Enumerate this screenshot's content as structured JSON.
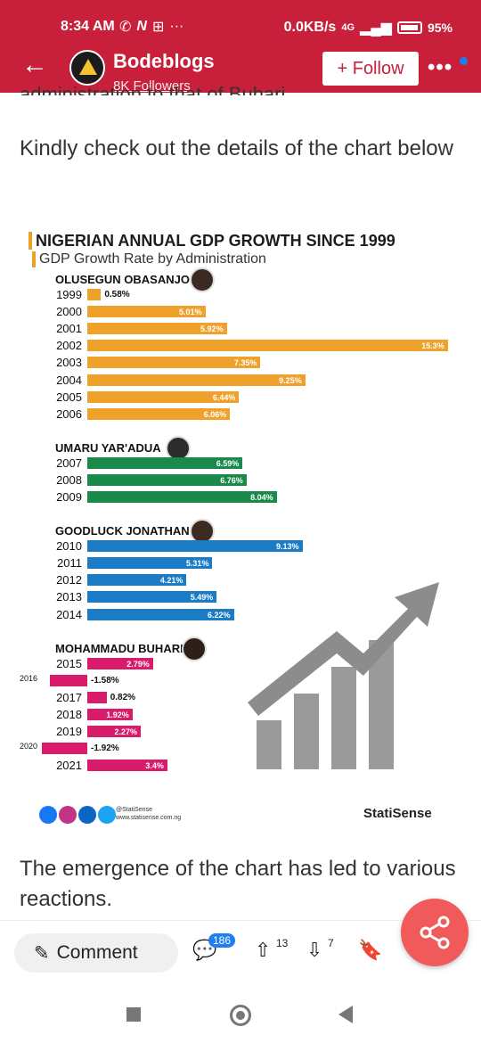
{
  "status": {
    "time": "8:34 AM",
    "network": "0.0KB/s",
    "signal": "4G",
    "battery": "95%"
  },
  "header": {
    "blog_name": "Bodeblogs",
    "followers": "8K Followers",
    "follow_label": "+ Follow"
  },
  "article": {
    "cut_text": "administration to that of Buhari",
    "para_before": "Kindly check out the details of the chart below",
    "para_after": "The emergence of the chart has led to various reactions."
  },
  "chart_data": {
    "type": "bar",
    "title": "NIGERIAN ANNUAL GDP GROWTH SINCE 1999",
    "subtitle": "GDP Growth Rate by Administration",
    "xlim": [
      -2,
      15.5
    ],
    "series": [
      {
        "name": "OLUSEGUN OBASANJO",
        "color": "#f0a12b",
        "categories": [
          "1999",
          "2000",
          "2001",
          "2002",
          "2003",
          "2004",
          "2005",
          "2006"
        ],
        "values": [
          0.58,
          5.01,
          5.92,
          15.3,
          7.35,
          9.25,
          6.44,
          6.06
        ],
        "labels": [
          "0.58%",
          "5.01%",
          "5.92%",
          "15.3%",
          "7.35%",
          "9.25%",
          "6.44%",
          "6.06%"
        ]
      },
      {
        "name": "UMARU YAR'ADUA",
        "color": "#1a8a4a",
        "categories": [
          "2007",
          "2008",
          "2009"
        ],
        "values": [
          6.59,
          6.76,
          8.04
        ],
        "labels": [
          "6.59%",
          "6.76%",
          "8.04%"
        ]
      },
      {
        "name": "GOODLUCK JONATHAN",
        "color": "#1b7bc4",
        "categories": [
          "2010",
          "2011",
          "2012",
          "2013",
          "2014"
        ],
        "values": [
          9.13,
          5.31,
          4.21,
          5.49,
          6.22
        ],
        "labels": [
          "9.13%",
          "5.31%",
          "4.21%",
          "5.49%",
          "6.22%"
        ]
      },
      {
        "name": "MOHAMMADU BUHARI",
        "color": "#d81b6a",
        "categories": [
          "2015",
          "2016",
          "2017",
          "2018",
          "2019",
          "2020",
          "2021"
        ],
        "values": [
          2.79,
          -1.58,
          0.82,
          1.92,
          2.27,
          -1.92,
          3.4
        ],
        "labels": [
          "2.79%",
          "-1.58%",
          "0.82%",
          "1.92%",
          "2.27%",
          "-1.92%",
          "3.4%"
        ]
      }
    ],
    "source_handle": "@StatiSense",
    "source_url": "www.statisense.com.ng",
    "brand": "StatiSense"
  },
  "actions": {
    "comment_label": "Comment",
    "comment_count": "186",
    "upvotes": "13",
    "downvotes": "7"
  }
}
